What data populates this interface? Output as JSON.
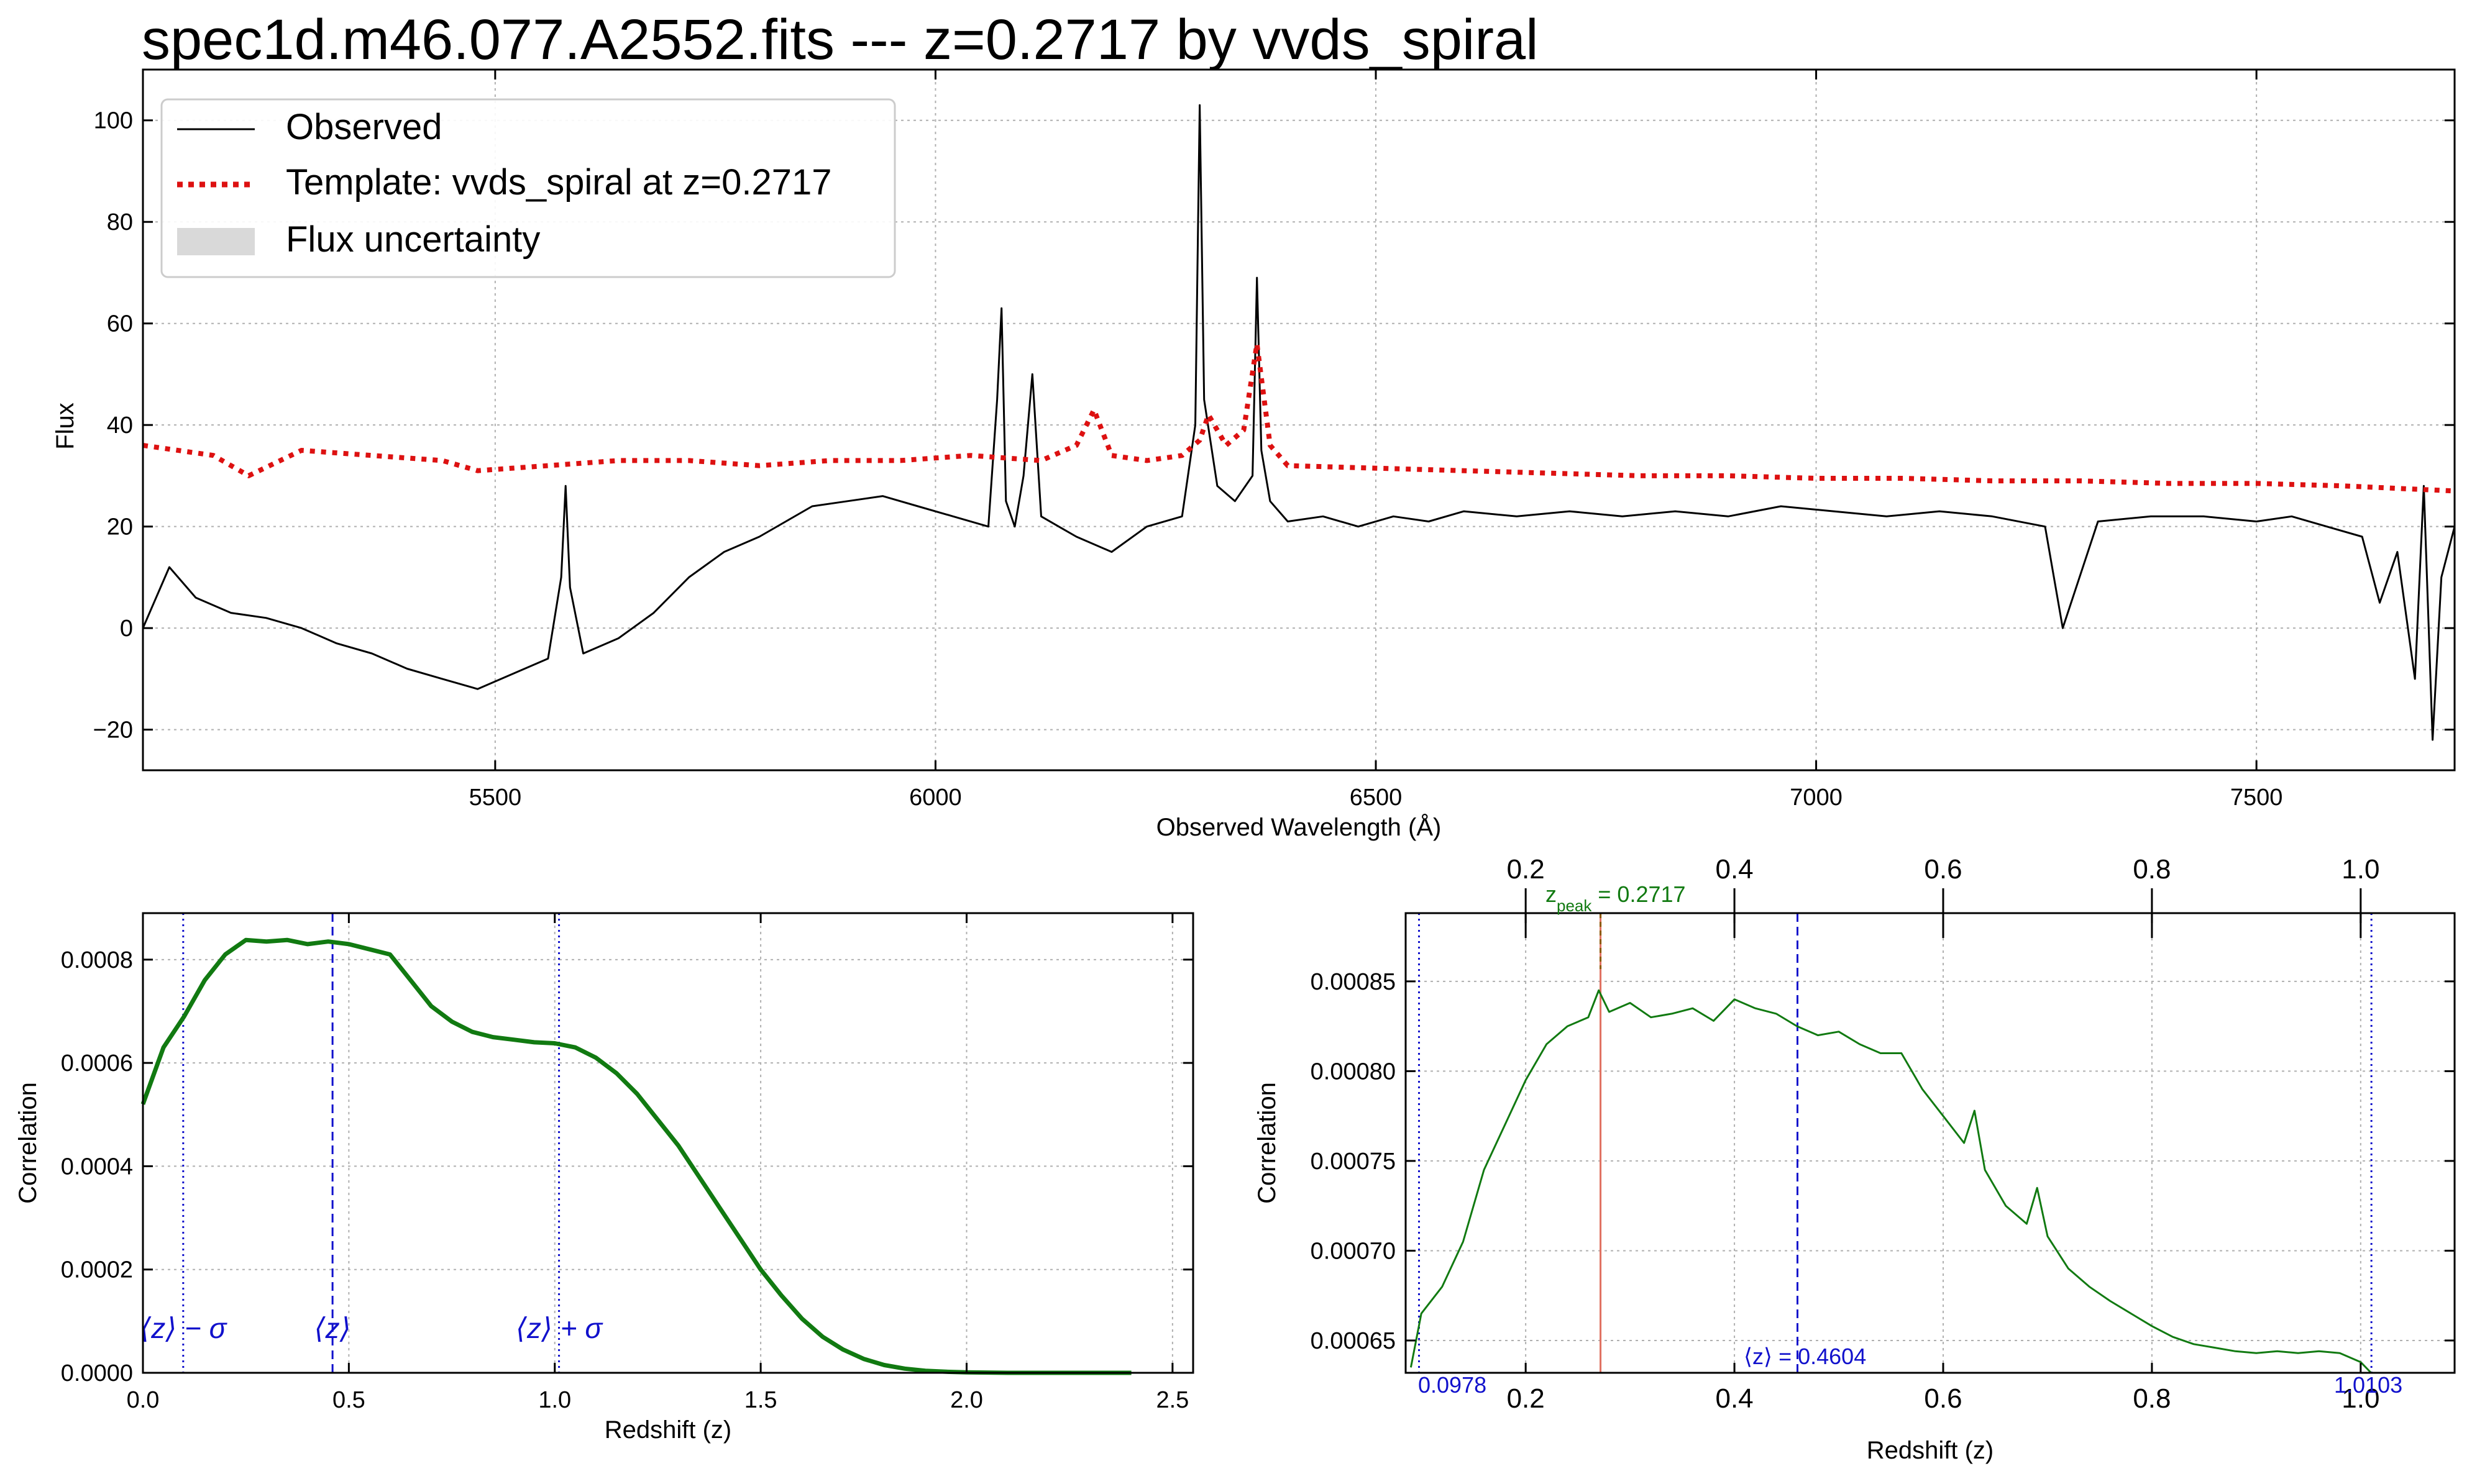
{
  "figure": {
    "title": "spec1d.m46.077.A2552.fits --- z=0.2717 by vvds_spiral"
  },
  "colors": {
    "observed": "#000000",
    "template": "#dd1111",
    "uncertainty": "#d9d9d9",
    "correlation": "#117a11",
    "stats": "#1111cc",
    "peak": "#e07060",
    "grid": "#b0b0b0"
  },
  "chart_data": [
    {
      "id": "spectrum",
      "type": "line",
      "title": "spec1d.m46.077.A2552.fits --- z=0.2717 by vvds_spiral",
      "xlabel": "Observed Wavelength (Å)",
      "ylabel": "Flux",
      "xlim": [
        5100,
        7725
      ],
      "ylim": [
        -28,
        110
      ],
      "xticks": [
        5500,
        6000,
        6500,
        7000,
        7500
      ],
      "yticks": [
        -20,
        0,
        20,
        40,
        60,
        80,
        100
      ],
      "grid": true,
      "legend_position": "top-left",
      "legend": [
        "Observed",
        "Template: vvds_spiral at z=0.2717",
        "Flux uncertainty"
      ],
      "series": [
        {
          "name": "Observed",
          "style": "solid",
          "x": [
            5100,
            5130,
            5160,
            5200,
            5240,
            5280,
            5320,
            5360,
            5400,
            5440,
            5480,
            5520,
            5560,
            5575,
            5580,
            5585,
            5600,
            5640,
            5680,
            5720,
            5760,
            5800,
            5830,
            5860,
            5900,
            5940,
            5980,
            6020,
            6060,
            6070,
            6075,
            6080,
            6090,
            6100,
            6110,
            6120,
            6140,
            6160,
            6200,
            6240,
            6280,
            6295,
            6300,
            6305,
            6320,
            6340,
            6360,
            6365,
            6370,
            6380,
            6400,
            6440,
            6480,
            6520,
            6560,
            6600,
            6660,
            6720,
            6780,
            6840,
            6900,
            6960,
            7020,
            7080,
            7140,
            7200,
            7260,
            7280,
            7320,
            7380,
            7440,
            7500,
            7540,
            7580,
            7620,
            7640,
            7660,
            7680,
            7690,
            7700,
            7710,
            7725
          ],
          "y": [
            0,
            12,
            6,
            3,
            2,
            0,
            -3,
            -5,
            -8,
            -10,
            -12,
            -9,
            -6,
            10,
            28,
            8,
            -5,
            -2,
            3,
            10,
            15,
            18,
            21,
            24,
            25,
            26,
            24,
            22,
            20,
            45,
            63,
            25,
            20,
            30,
            50,
            22,
            20,
            18,
            15,
            20,
            22,
            40,
            103,
            45,
            28,
            25,
            30,
            69,
            35,
            25,
            21,
            22,
            20,
            22,
            21,
            23,
            22,
            23,
            22,
            23,
            22,
            24,
            23,
            22,
            23,
            22,
            20,
            0,
            21,
            22,
            22,
            21,
            22,
            20,
            18,
            5,
            15,
            -10,
            28,
            -22,
            10,
            20
          ]
        },
        {
          "name": "Template: vvds_spiral at z=0.2717",
          "style": "dotted",
          "x": [
            5100,
            5180,
            5220,
            5280,
            5360,
            5440,
            5480,
            5560,
            5640,
            5720,
            5800,
            5880,
            5960,
            6040,
            6120,
            6160,
            6180,
            6200,
            6240,
            6280,
            6300,
            6310,
            6330,
            6350,
            6365,
            6380,
            6400,
            6500,
            6600,
            6700,
            6800,
            6900,
            7000,
            7100,
            7200,
            7300,
            7400,
            7500,
            7600,
            7725
          ],
          "y": [
            36,
            34,
            30,
            35,
            34,
            33,
            31,
            32,
            33,
            33,
            32,
            33,
            33,
            34,
            33,
            36,
            43,
            34,
            33,
            34,
            37,
            42,
            36,
            39,
            56,
            36,
            32,
            31.5,
            31,
            30.5,
            30,
            30,
            29.5,
            29.5,
            29,
            29,
            28.5,
            28.5,
            28,
            27
          ]
        }
      ]
    },
    {
      "id": "correlation-full",
      "type": "line",
      "xlabel": "Redshift (z)",
      "ylabel": "Correlation",
      "xlim": [
        0,
        2.55
      ],
      "ylim": [
        0,
        0.00089
      ],
      "xticks": [
        0.0,
        0.5,
        1.0,
        1.5,
        2.0,
        2.5
      ],
      "xticklabels": [
        "0.0",
        "0.5",
        "1.0",
        "1.5",
        "2.0",
        "2.5"
      ],
      "yticks": [
        0.0,
        0.0002,
        0.0004,
        0.0006,
        0.0008
      ],
      "yticklabels": [
        "0.0000",
        "0.0002",
        "0.0004",
        "0.0006",
        "0.0008"
      ],
      "grid": true,
      "series": [
        {
          "x": [
            0,
            0.05,
            0.1,
            0.15,
            0.2,
            0.25,
            0.3,
            0.35,
            0.4,
            0.45,
            0.5,
            0.55,
            0.6,
            0.65,
            0.7,
            0.75,
            0.8,
            0.85,
            0.9,
            0.95,
            1.0,
            1.05,
            1.1,
            1.15,
            1.2,
            1.25,
            1.3,
            1.35,
            1.4,
            1.45,
            1.5,
            1.55,
            1.6,
            1.65,
            1.7,
            1.75,
            1.8,
            1.85,
            1.9,
            1.95,
            2.0,
            2.1,
            2.2,
            2.3,
            2.4
          ],
          "y": [
            0.00052,
            0.00063,
            0.00069,
            0.00076,
            0.00081,
            0.000838,
            0.000835,
            0.000838,
            0.00083,
            0.000835,
            0.00083,
            0.00082,
            0.00081,
            0.00076,
            0.00071,
            0.00068,
            0.00066,
            0.00065,
            0.000645,
            0.00064,
            0.000638,
            0.00063,
            0.00061,
            0.00058,
            0.00054,
            0.00049,
            0.00044,
            0.00038,
            0.00032,
            0.00026,
            0.0002,
            0.00015,
            0.000105,
            7e-05,
            4.5e-05,
            2.7e-05,
            1.5e-05,
            8e-06,
            4e-06,
            2e-06,
            1e-06,
            0,
            0,
            0,
            0
          ]
        }
      ],
      "vlines": [
        {
          "x": 0.0978,
          "style": "dotted",
          "label": "⟨z⟩ − σ"
        },
        {
          "x": 0.4604,
          "style": "dashed",
          "label": "⟨z⟩"
        },
        {
          "x": 1.0103,
          "style": "dotted",
          "label": "⟨z⟩ + σ"
        }
      ]
    },
    {
      "id": "correlation-zoom",
      "type": "line",
      "xlabel": "Redshift (z)",
      "ylabel": "Correlation",
      "xlim": [
        0.085,
        1.09
      ],
      "ylim": [
        0.000632,
        0.000888
      ],
      "xticks": [
        0.2,
        0.4,
        0.6,
        0.8,
        1.0
      ],
      "xticklabels": [
        "0.2",
        "0.4",
        "0.6",
        "0.8",
        "1.0"
      ],
      "yticks": [
        0.00065,
        0.0007,
        0.00075,
        0.0008,
        0.00085
      ],
      "yticklabels": [
        "0.00065",
        "0.00070",
        "0.00075",
        "0.00080",
        "0.00085"
      ],
      "grid": true,
      "series": [
        {
          "x": [
            0.09,
            0.1,
            0.12,
            0.14,
            0.16,
            0.18,
            0.2,
            0.22,
            0.24,
            0.26,
            0.27,
            0.28,
            0.3,
            0.32,
            0.34,
            0.36,
            0.38,
            0.4,
            0.42,
            0.44,
            0.46,
            0.48,
            0.5,
            0.52,
            0.54,
            0.56,
            0.58,
            0.6,
            0.62,
            0.63,
            0.64,
            0.66,
            0.68,
            0.69,
            0.7,
            0.72,
            0.74,
            0.76,
            0.78,
            0.8,
            0.82,
            0.84,
            0.86,
            0.88,
            0.9,
            0.92,
            0.94,
            0.96,
            0.98,
            1.0,
            1.01
          ],
          "y": [
            0.000635,
            0.000665,
            0.00068,
            0.000705,
            0.000745,
            0.00077,
            0.000795,
            0.000815,
            0.000825,
            0.00083,
            0.000845,
            0.000833,
            0.000838,
            0.00083,
            0.000832,
            0.000835,
            0.000828,
            0.00084,
            0.000835,
            0.000832,
            0.000825,
            0.00082,
            0.000822,
            0.000815,
            0.00081,
            0.00081,
            0.00079,
            0.000775,
            0.00076,
            0.000778,
            0.000745,
            0.000725,
            0.000715,
            0.000735,
            0.000708,
            0.00069,
            0.00068,
            0.000672,
            0.000665,
            0.000658,
            0.000652,
            0.000648,
            0.000646,
            0.000644,
            0.000643,
            0.000644,
            0.000643,
            0.000644,
            0.000643,
            0.000638,
            0.000632
          ]
        }
      ],
      "vlines": [
        {
          "x": 0.0978,
          "style": "dotted",
          "label": "0.0978"
        },
        {
          "x": 0.2717,
          "style": "solid-peak",
          "label": "z_peak = 0.2717"
        },
        {
          "x": 0.4604,
          "style": "dashed",
          "label": "⟨z⟩ = 0.4604"
        },
        {
          "x": 1.0103,
          "style": "dotted",
          "label": "1.0103"
        }
      ],
      "annotations": {
        "peak_symbol": "z",
        "peak_subscript": "peak",
        "peak_value": " = 0.2717",
        "mean_label": "⟨z⟩ = 0.4604",
        "low_label": "0.0978",
        "high_label": "1.0103"
      }
    }
  ]
}
